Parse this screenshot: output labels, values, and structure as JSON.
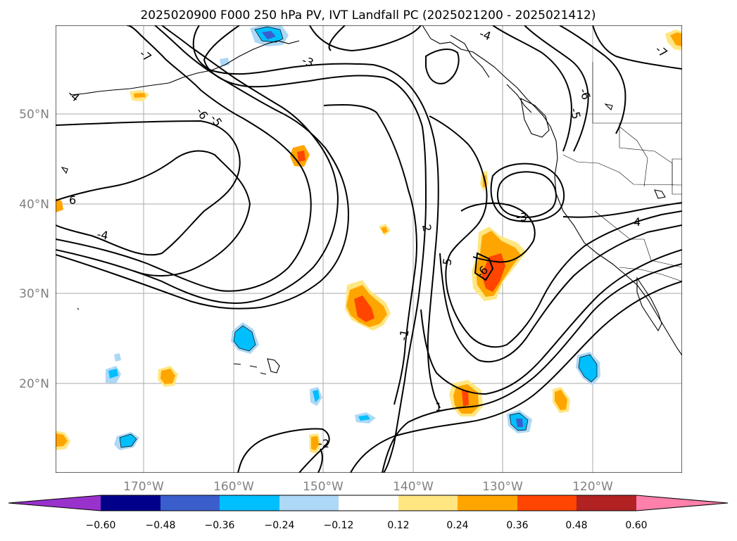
{
  "title": "2025020900 F000 250 hPa PV, IVT Landfall PC (2025021200 - 2025021412)",
  "lat_labels": [
    "50°N",
    "40°N",
    "30°N",
    "20°N"
  ],
  "lon_labels": [
    "170°W",
    "160°W",
    "150°W",
    "140°W",
    "130°W",
    "120°W"
  ],
  "contour_labels": [
    "-7",
    "-6",
    "-5",
    "-4",
    "-3",
    "-4",
    "-6",
    "-5",
    "-7",
    "6",
    "4",
    "2",
    "1",
    "5",
    "-3",
    "-6",
    "-1",
    "-2",
    "-4",
    "6",
    "5",
    "7"
  ],
  "colorbar": {
    "tick_labels": [
      "−0.60",
      "−0.48",
      "−0.36",
      "−0.24",
      "−0.12",
      "0.12",
      "0.24",
      "0.36",
      "0.48",
      "0.60"
    ],
    "colors": [
      "#9932cc",
      "#00008b",
      "#3a5fcd",
      "#00bfff",
      "#add8f6",
      "#ffffff",
      "#ffe680",
      "#ffa500",
      "#ff4500",
      "#b22222",
      "#ff80aa"
    ]
  },
  "colors": {
    "grid": "#aaaaaa",
    "axis_label": "#808080",
    "contour": "#000000"
  }
}
